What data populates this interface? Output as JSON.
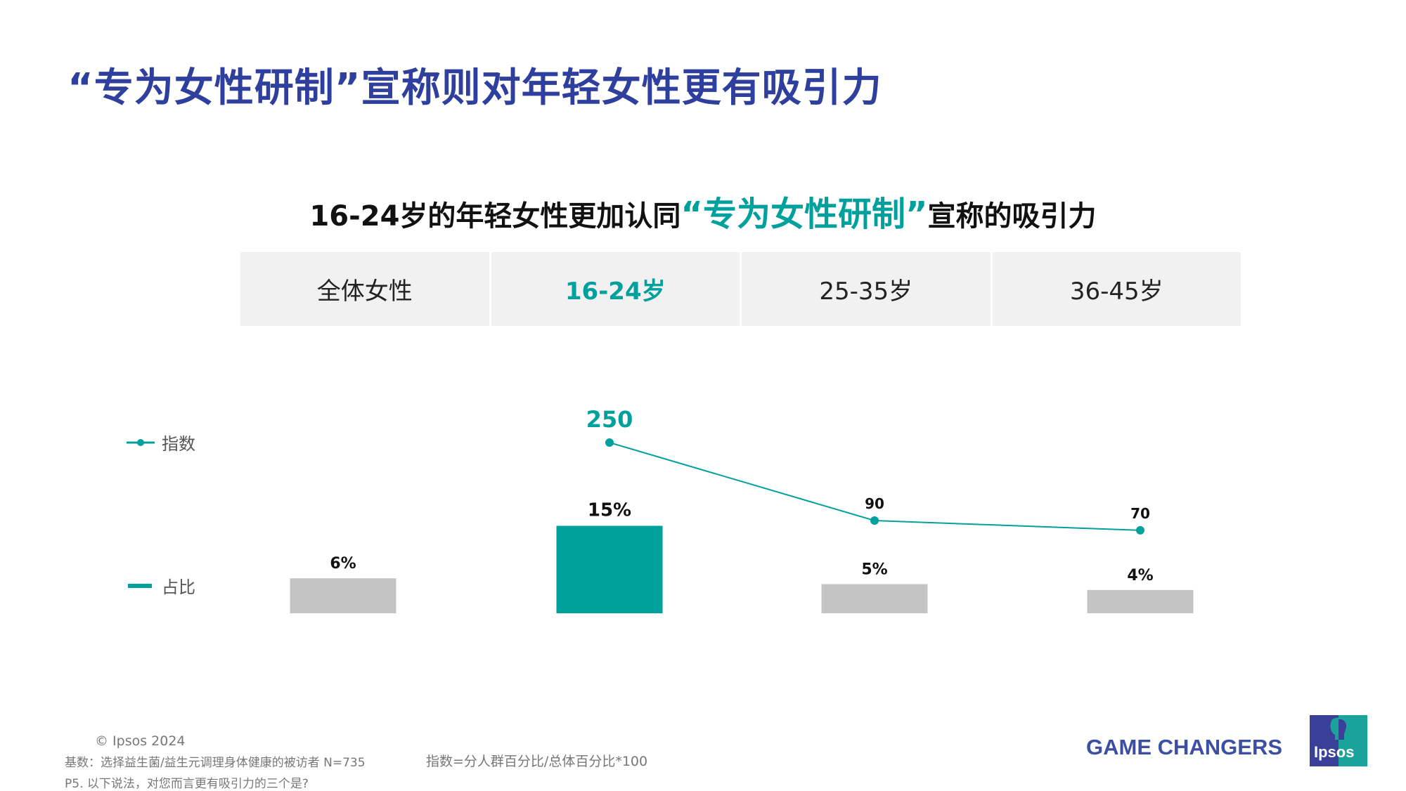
{
  "title": "“专为女性研制”宣称则对年轻女性更有吸引力",
  "subtitle": {
    "pre": "16-24岁的年轻女性更加认同",
    "highlight": "“专为女性研制”",
    "post": "宣称的吸引力"
  },
  "colors": {
    "title": "#2f3f9e",
    "accent": "#00a09d",
    "bar_default": "#c4c4c4"
  },
  "chart_data": {
    "type": "bar+line",
    "categories": [
      "全体女性",
      "16-24岁",
      "25-35岁",
      "36-45岁"
    ],
    "highlight_category": "16-24岁",
    "series": [
      {
        "name": "占比",
        "type": "bar",
        "values": [
          6,
          15,
          5,
          4
        ],
        "labels": [
          "6%",
          "15%",
          "5%",
          "4%"
        ]
      },
      {
        "name": "指数",
        "type": "line",
        "values": [
          null,
          250,
          90,
          70
        ],
        "labels": [
          "",
          "250",
          "90",
          "70"
        ]
      }
    ],
    "legend": [
      "指数",
      "占比"
    ],
    "legend_position": "left"
  },
  "footer": {
    "copyright": "© Ipsos 2024",
    "base": "基数：选择益生菌/益生元调理身体健康的被访者 N=735",
    "question": "P5. 以下说法，对您而言更有吸引力的三个是?",
    "index_note": "指数=分人群百分比/总体百分比*100",
    "tagline": "GAME CHANGERS",
    "logo": "Ipsos"
  }
}
